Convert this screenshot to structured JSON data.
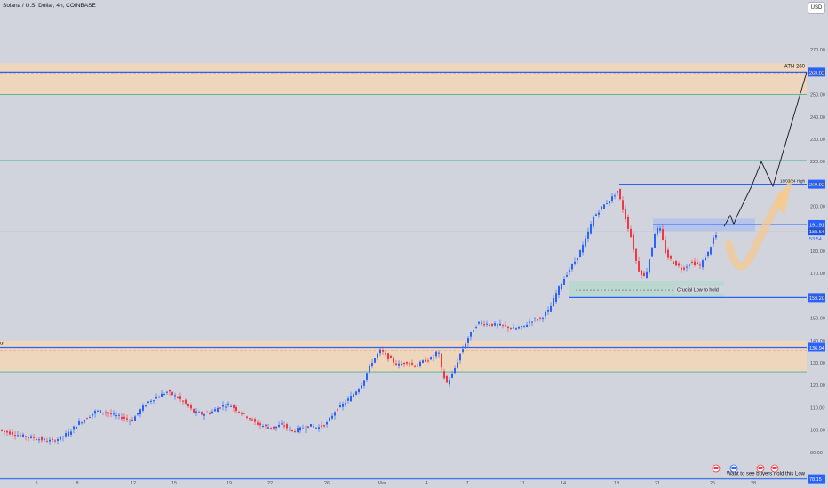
{
  "header": {
    "symbol_title": "Solana / U.S. Dollar, 4h, COINBASE",
    "currency_button": "USD"
  },
  "colors": {
    "background": "#d1d4dc",
    "up_candle": "#2962ff",
    "down_candle": "#f23645",
    "level_line": "#2962ff",
    "zone_fill": "#f5d7b0",
    "green_line": "#4caf91",
    "projection_arrow": "#f7c98b",
    "path_line": "#131722"
  },
  "chart_data": {
    "type": "candlestick",
    "title": "Solana / U.S. Dollar, 4h, COINBASE",
    "y_unit": "USD",
    "ylim": [
      76,
      278
    ],
    "y_ticks": [
      90.0,
      100.0,
      110.0,
      120.0,
      130.0,
      140.0,
      150.0,
      160.0,
      170.0,
      180.0,
      190.0,
      200.0,
      210.0,
      220.0,
      230.0,
      240.0,
      250.0,
      260.0,
      270.0
    ],
    "x_ticks": [
      "5",
      "8",
      "12",
      "15",
      "19",
      "22",
      "26",
      "Mar",
      "4",
      "7",
      "11",
      "14",
      "18",
      "21",
      "25",
      "28"
    ],
    "price_path": [
      [
        0,
        100.0
      ],
      [
        10,
        99.0
      ],
      [
        20,
        98.0
      ],
      [
        30,
        97.0
      ],
      [
        40,
        96.5
      ],
      [
        50,
        95.5
      ],
      [
        60,
        95.0
      ],
      [
        70,
        96.5
      ],
      [
        80,
        99.0
      ],
      [
        90,
        103.0
      ],
      [
        100,
        105.5
      ],
      [
        110,
        108.5
      ],
      [
        120,
        108.0
      ],
      [
        130,
        106.5
      ],
      [
        140,
        105.5
      ],
      [
        150,
        104.0
      ],
      [
        160,
        109.0
      ],
      [
        170,
        113.0
      ],
      [
        180,
        115.0
      ],
      [
        190,
        117.0
      ],
      [
        200,
        115.0
      ],
      [
        210,
        112.0
      ],
      [
        220,
        108.0
      ],
      [
        230,
        107.0
      ],
      [
        240,
        108.0
      ],
      [
        250,
        110.5
      ],
      [
        260,
        111.5
      ],
      [
        270,
        108.5
      ],
      [
        280,
        106.0
      ],
      [
        290,
        103.0
      ],
      [
        300,
        101.5
      ],
      [
        310,
        101.0
      ],
      [
        320,
        102.5
      ],
      [
        330,
        99.5
      ],
      [
        340,
        100.5
      ],
      [
        350,
        102.0
      ],
      [
        360,
        101.0
      ],
      [
        370,
        103.0
      ],
      [
        380,
        109.0
      ],
      [
        390,
        112.0
      ],
      [
        400,
        116.0
      ],
      [
        410,
        121.0
      ],
      [
        420,
        130.0
      ],
      [
        430,
        135.5
      ],
      [
        440,
        132.0
      ],
      [
        450,
        129.0
      ],
      [
        460,
        130.5
      ],
      [
        470,
        128.5
      ],
      [
        480,
        131.0
      ],
      [
        490,
        132.5
      ],
      [
        495,
        136.0
      ],
      [
        500,
        125.0
      ],
      [
        505,
        121.0
      ],
      [
        510,
        124.0
      ],
      [
        515,
        128.5
      ],
      [
        520,
        134.0
      ],
      [
        530,
        142.0
      ],
      [
        540,
        148.0
      ],
      [
        550,
        147.5
      ],
      [
        560,
        147.0
      ],
      [
        570,
        146.5
      ],
      [
        580,
        145.0
      ],
      [
        590,
        146.0
      ],
      [
        600,
        149.0
      ],
      [
        610,
        150.0
      ],
      [
        620,
        153.5
      ],
      [
        630,
        163.0
      ],
      [
        640,
        170.0
      ],
      [
        650,
        176.0
      ],
      [
        660,
        184.0
      ],
      [
        670,
        195.0
      ],
      [
        680,
        200.0
      ],
      [
        690,
        203.5
      ],
      [
        697,
        207.0
      ],
      [
        705,
        196.0
      ],
      [
        712,
        186.5
      ],
      [
        720,
        172.0
      ],
      [
        728,
        168.0
      ],
      [
        735,
        180.0
      ],
      [
        740,
        190.0
      ],
      [
        745,
        189.5
      ],
      [
        752,
        178.0
      ],
      [
        760,
        175.0
      ],
      [
        770,
        172.0
      ],
      [
        780,
        175.0
      ],
      [
        790,
        173.5
      ],
      [
        800,
        180.0
      ],
      [
        806,
        187.0
      ]
    ],
    "horizontal_levels": [
      {
        "price": 260.0,
        "label": "260.00"
      },
      {
        "price": 209.9,
        "label": "209.90"
      },
      {
        "price": 191.91,
        "label": "191.91"
      },
      {
        "price": 159.2,
        "label": "159.20"
      },
      {
        "price": 136.94,
        "label": "136.94"
      },
      {
        "price": 78.15,
        "label": "78.15"
      }
    ],
    "price_labels": {
      "current": "188.64",
      "countdown": "53:54"
    },
    "annotations": {
      "ath": "ATH 260",
      "high_label": "18/03/24 High",
      "crucial_low": "Crucial Low to hold",
      "left_cut_label": "ut",
      "bottom_note": "Want to see buyers hold this Low"
    }
  }
}
